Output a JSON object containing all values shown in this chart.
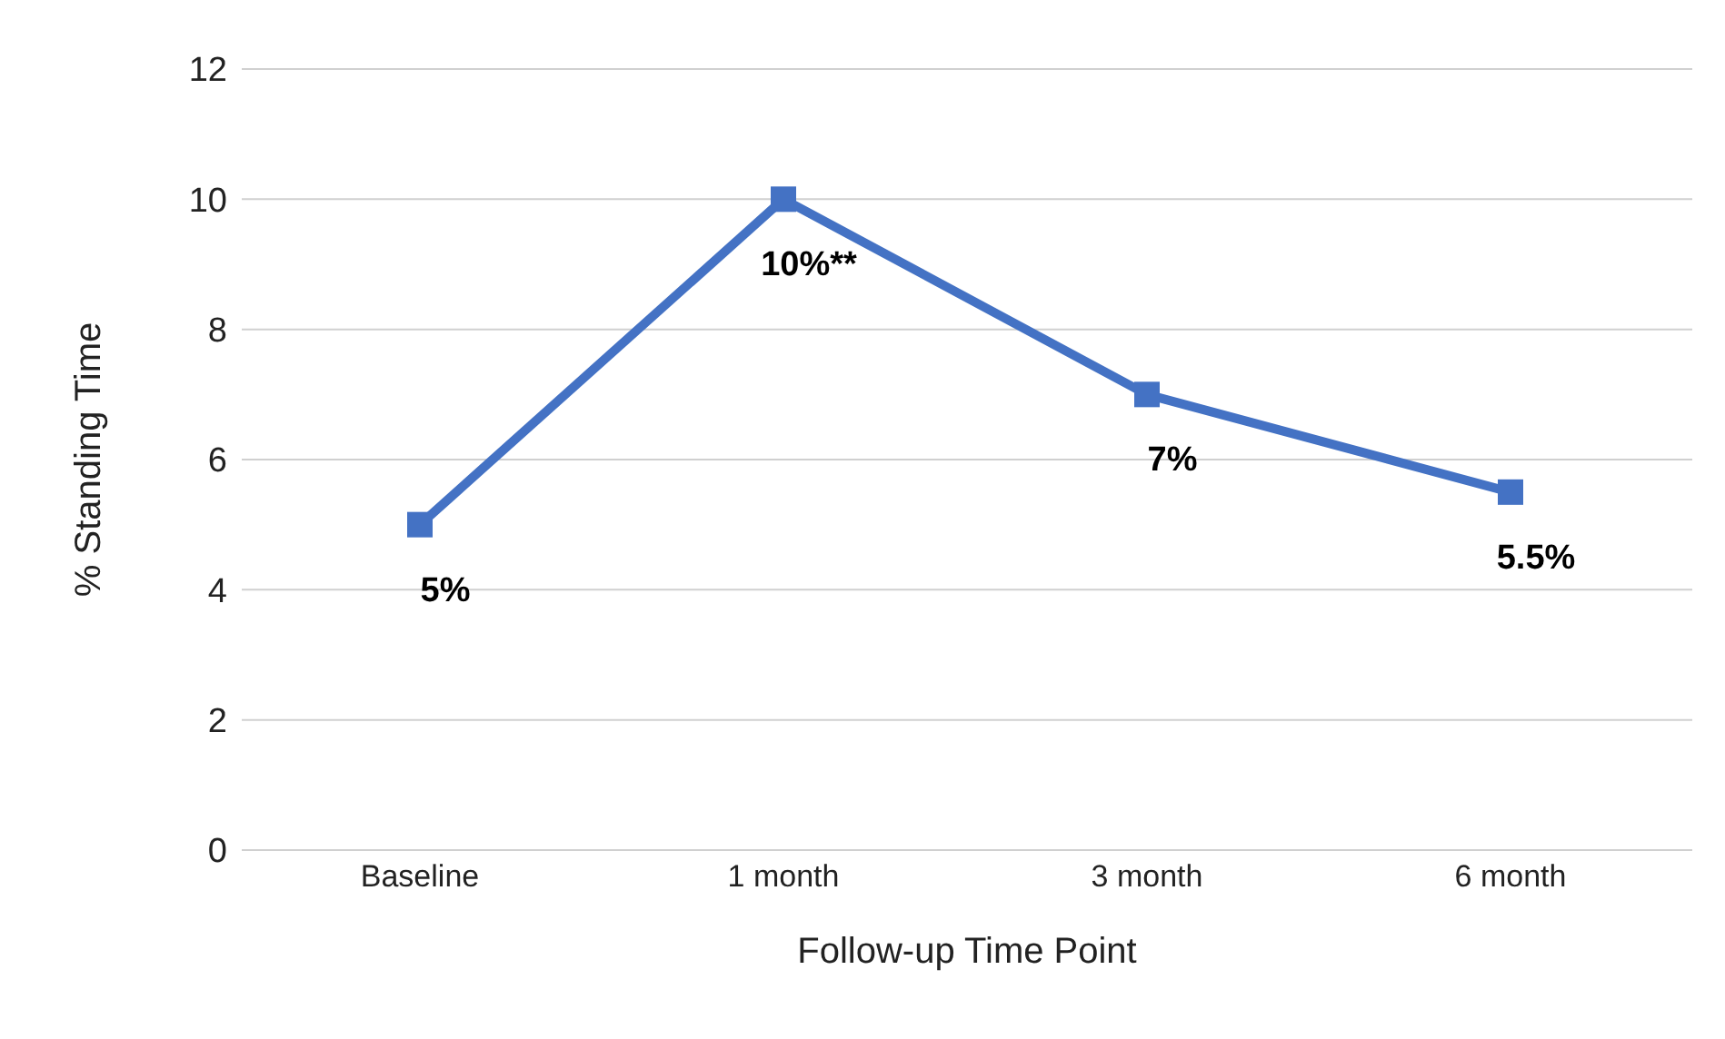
{
  "chart_data": {
    "type": "line",
    "xlabel": "Follow-up Time Point",
    "ylabel": "% Standing Time",
    "categories": [
      "Baseline",
      "1 month",
      "3 month",
      "6 month"
    ],
    "series": [
      {
        "color": "#4472c4",
        "values": [
          5,
          10,
          7,
          5.5
        ],
        "value_labels": [
          "5%",
          "10%**",
          "7%",
          "5.5%"
        ]
      }
    ],
    "ylim": [
      0,
      12
    ],
    "yticks": [
      0,
      2,
      4,
      6,
      8,
      10,
      12
    ],
    "grid": "y",
    "marker": "square",
    "line_style": "solid",
    "legend": false
  }
}
